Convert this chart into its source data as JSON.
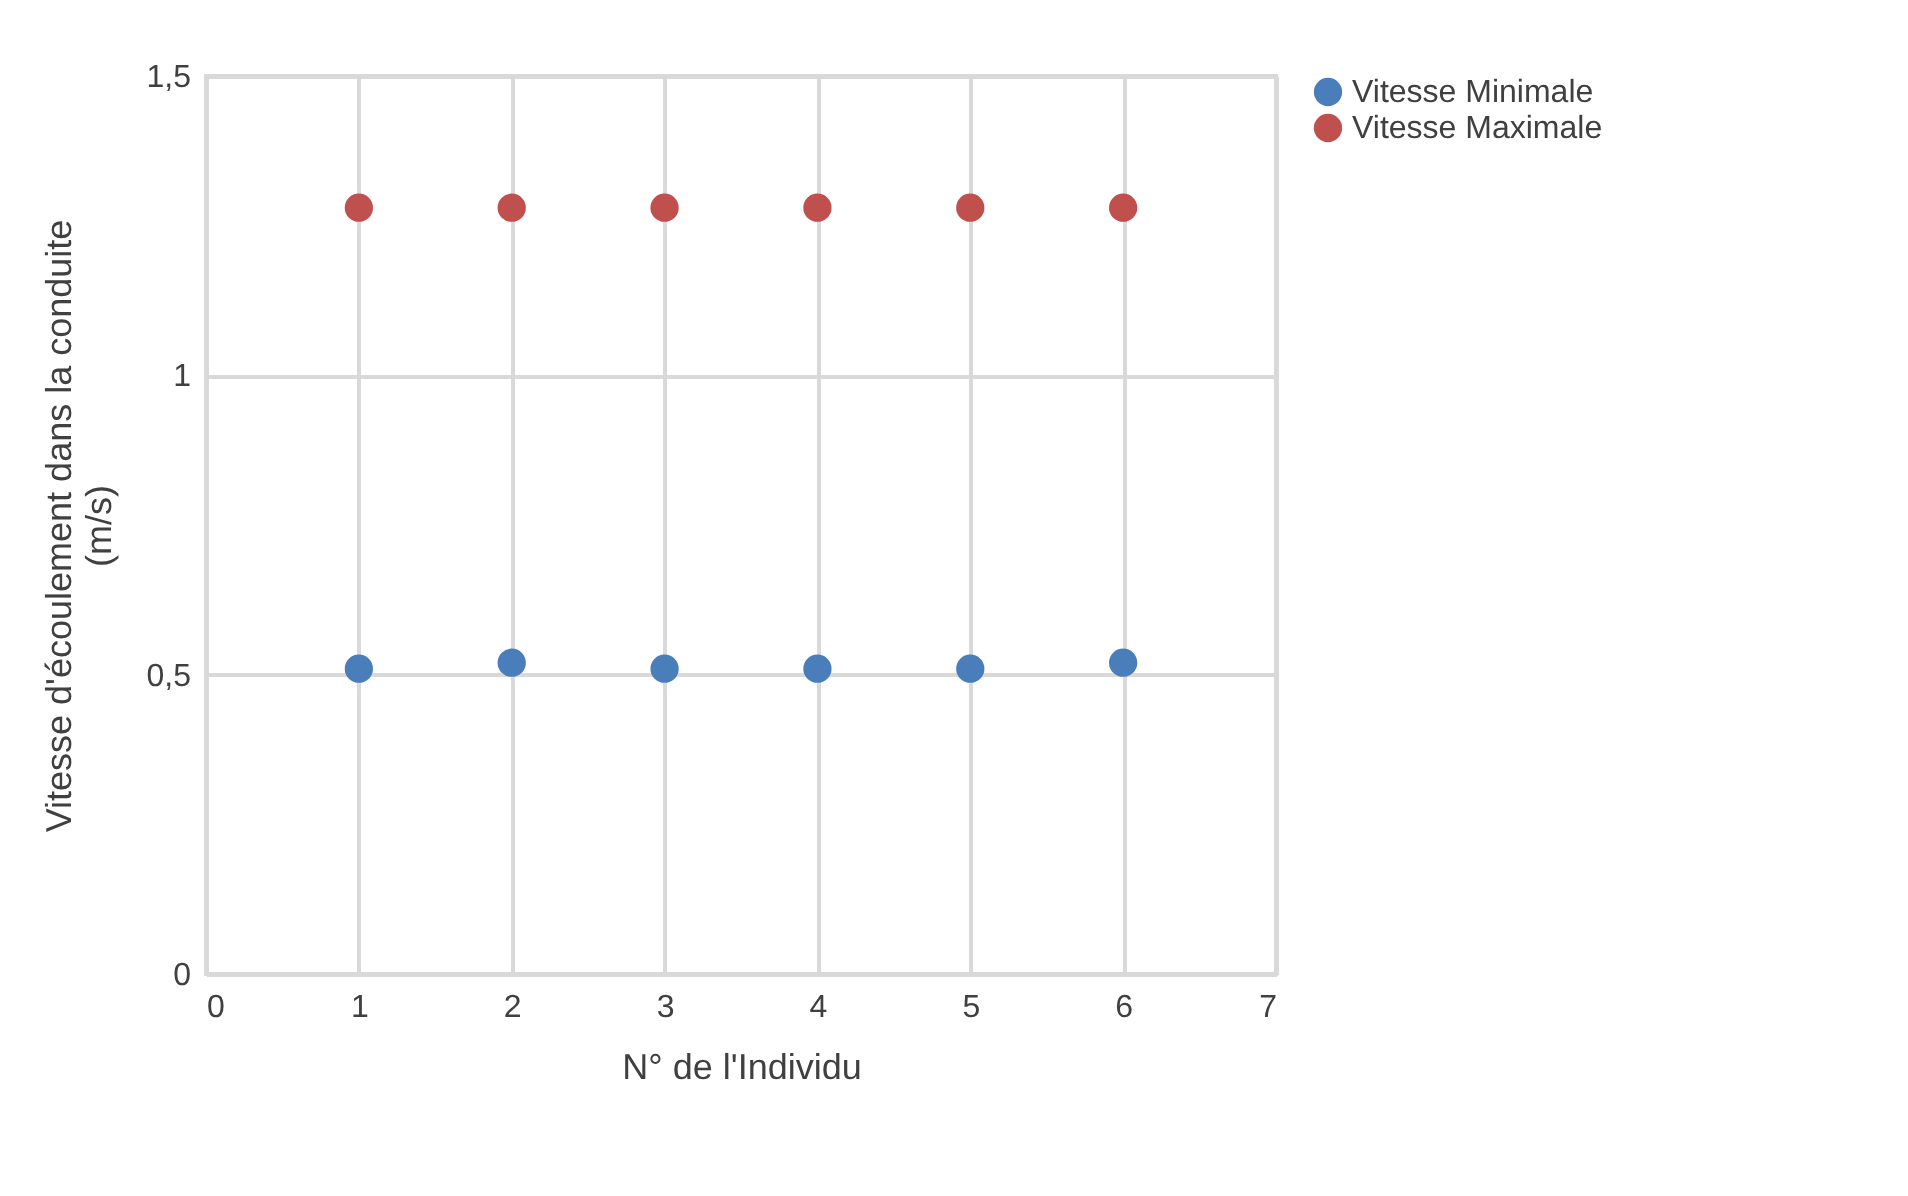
{
  "chart_data": {
    "type": "scatter",
    "xlabel": "N° de l'Individu",
    "ylabel": "Vitesse d'écoulement dans la conduite\n(m/s)",
    "x": [
      1,
      2,
      3,
      4,
      5,
      6
    ],
    "series": [
      {
        "name": "Vitesse Minimale",
        "color": "#4a7ebb",
        "values": [
          0.51,
          0.52,
          0.51,
          0.51,
          0.51,
          0.52
        ]
      },
      {
        "name": "Vitesse Maximale",
        "color": "#c0504d",
        "values": [
          1.28,
          1.28,
          1.28,
          1.28,
          1.28,
          1.28
        ]
      }
    ],
    "xlim": [
      0,
      7
    ],
    "xticks": [
      0,
      1,
      2,
      3,
      4,
      5,
      6,
      7
    ],
    "ylim": [
      0,
      1.5
    ],
    "yticks": [
      0,
      {
        "value": 0.5,
        "label": "0,5"
      },
      1,
      {
        "value": 1.5,
        "label": "1,5"
      }
    ],
    "grid": true,
    "legend": "right",
    "marker": "circle"
  }
}
